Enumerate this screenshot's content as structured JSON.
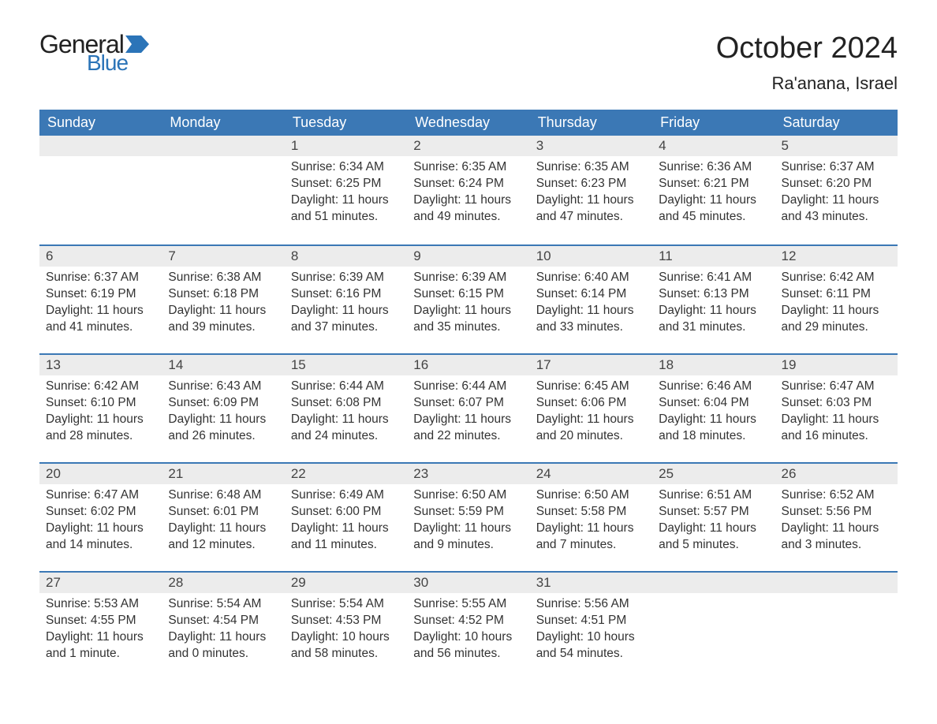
{
  "logo": {
    "text_general": "General",
    "text_blue": "Blue",
    "flag_color": "#2b74b8"
  },
  "title": "October 2024",
  "location": "Ra'anana, Israel",
  "colors": {
    "header_bg": "#3b78b5",
    "header_text": "#ffffff",
    "daynum_bg": "#ececec",
    "rule": "#3b78b5",
    "body_text": "#333333"
  },
  "weekdays": [
    "Sunday",
    "Monday",
    "Tuesday",
    "Wednesday",
    "Thursday",
    "Friday",
    "Saturday"
  ],
  "weeks": [
    [
      {
        "day": "",
        "lines": []
      },
      {
        "day": "",
        "lines": []
      },
      {
        "day": "1",
        "lines": [
          "Sunrise: 6:34 AM",
          "Sunset: 6:25 PM",
          "Daylight: 11 hours and 51 minutes."
        ]
      },
      {
        "day": "2",
        "lines": [
          "Sunrise: 6:35 AM",
          "Sunset: 6:24 PM",
          "Daylight: 11 hours and 49 minutes."
        ]
      },
      {
        "day": "3",
        "lines": [
          "Sunrise: 6:35 AM",
          "Sunset: 6:23 PM",
          "Daylight: 11 hours and 47 minutes."
        ]
      },
      {
        "day": "4",
        "lines": [
          "Sunrise: 6:36 AM",
          "Sunset: 6:21 PM",
          "Daylight: 11 hours and 45 minutes."
        ]
      },
      {
        "day": "5",
        "lines": [
          "Sunrise: 6:37 AM",
          "Sunset: 6:20 PM",
          "Daylight: 11 hours and 43 minutes."
        ]
      }
    ],
    [
      {
        "day": "6",
        "lines": [
          "Sunrise: 6:37 AM",
          "Sunset: 6:19 PM",
          "Daylight: 11 hours and 41 minutes."
        ]
      },
      {
        "day": "7",
        "lines": [
          "Sunrise: 6:38 AM",
          "Sunset: 6:18 PM",
          "Daylight: 11 hours and 39 minutes."
        ]
      },
      {
        "day": "8",
        "lines": [
          "Sunrise: 6:39 AM",
          "Sunset: 6:16 PM",
          "Daylight: 11 hours and 37 minutes."
        ]
      },
      {
        "day": "9",
        "lines": [
          "Sunrise: 6:39 AM",
          "Sunset: 6:15 PM",
          "Daylight: 11 hours and 35 minutes."
        ]
      },
      {
        "day": "10",
        "lines": [
          "Sunrise: 6:40 AM",
          "Sunset: 6:14 PM",
          "Daylight: 11 hours and 33 minutes."
        ]
      },
      {
        "day": "11",
        "lines": [
          "Sunrise: 6:41 AM",
          "Sunset: 6:13 PM",
          "Daylight: 11 hours and 31 minutes."
        ]
      },
      {
        "day": "12",
        "lines": [
          "Sunrise: 6:42 AM",
          "Sunset: 6:11 PM",
          "Daylight: 11 hours and 29 minutes."
        ]
      }
    ],
    [
      {
        "day": "13",
        "lines": [
          "Sunrise: 6:42 AM",
          "Sunset: 6:10 PM",
          "Daylight: 11 hours and 28 minutes."
        ]
      },
      {
        "day": "14",
        "lines": [
          "Sunrise: 6:43 AM",
          "Sunset: 6:09 PM",
          "Daylight: 11 hours and 26 minutes."
        ]
      },
      {
        "day": "15",
        "lines": [
          "Sunrise: 6:44 AM",
          "Sunset: 6:08 PM",
          "Daylight: 11 hours and 24 minutes."
        ]
      },
      {
        "day": "16",
        "lines": [
          "Sunrise: 6:44 AM",
          "Sunset: 6:07 PM",
          "Daylight: 11 hours and 22 minutes."
        ]
      },
      {
        "day": "17",
        "lines": [
          "Sunrise: 6:45 AM",
          "Sunset: 6:06 PM",
          "Daylight: 11 hours and 20 minutes."
        ]
      },
      {
        "day": "18",
        "lines": [
          "Sunrise: 6:46 AM",
          "Sunset: 6:04 PM",
          "Daylight: 11 hours and 18 minutes."
        ]
      },
      {
        "day": "19",
        "lines": [
          "Sunrise: 6:47 AM",
          "Sunset: 6:03 PM",
          "Daylight: 11 hours and 16 minutes."
        ]
      }
    ],
    [
      {
        "day": "20",
        "lines": [
          "Sunrise: 6:47 AM",
          "Sunset: 6:02 PM",
          "Daylight: 11 hours and 14 minutes."
        ]
      },
      {
        "day": "21",
        "lines": [
          "Sunrise: 6:48 AM",
          "Sunset: 6:01 PM",
          "Daylight: 11 hours and 12 minutes."
        ]
      },
      {
        "day": "22",
        "lines": [
          "Sunrise: 6:49 AM",
          "Sunset: 6:00 PM",
          "Daylight: 11 hours and 11 minutes."
        ]
      },
      {
        "day": "23",
        "lines": [
          "Sunrise: 6:50 AM",
          "Sunset: 5:59 PM",
          "Daylight: 11 hours and 9 minutes."
        ]
      },
      {
        "day": "24",
        "lines": [
          "Sunrise: 6:50 AM",
          "Sunset: 5:58 PM",
          "Daylight: 11 hours and 7 minutes."
        ]
      },
      {
        "day": "25",
        "lines": [
          "Sunrise: 6:51 AM",
          "Sunset: 5:57 PM",
          "Daylight: 11 hours and 5 minutes."
        ]
      },
      {
        "day": "26",
        "lines": [
          "Sunrise: 6:52 AM",
          "Sunset: 5:56 PM",
          "Daylight: 11 hours and 3 minutes."
        ]
      }
    ],
    [
      {
        "day": "27",
        "lines": [
          "Sunrise: 5:53 AM",
          "Sunset: 4:55 PM",
          "Daylight: 11 hours and 1 minute."
        ]
      },
      {
        "day": "28",
        "lines": [
          "Sunrise: 5:54 AM",
          "Sunset: 4:54 PM",
          "Daylight: 11 hours and 0 minutes."
        ]
      },
      {
        "day": "29",
        "lines": [
          "Sunrise: 5:54 AM",
          "Sunset: 4:53 PM",
          "Daylight: 10 hours and 58 minutes."
        ]
      },
      {
        "day": "30",
        "lines": [
          "Sunrise: 5:55 AM",
          "Sunset: 4:52 PM",
          "Daylight: 10 hours and 56 minutes."
        ]
      },
      {
        "day": "31",
        "lines": [
          "Sunrise: 5:56 AM",
          "Sunset: 4:51 PM",
          "Daylight: 10 hours and 54 minutes."
        ]
      },
      {
        "day": "",
        "lines": []
      },
      {
        "day": "",
        "lines": []
      }
    ]
  ]
}
